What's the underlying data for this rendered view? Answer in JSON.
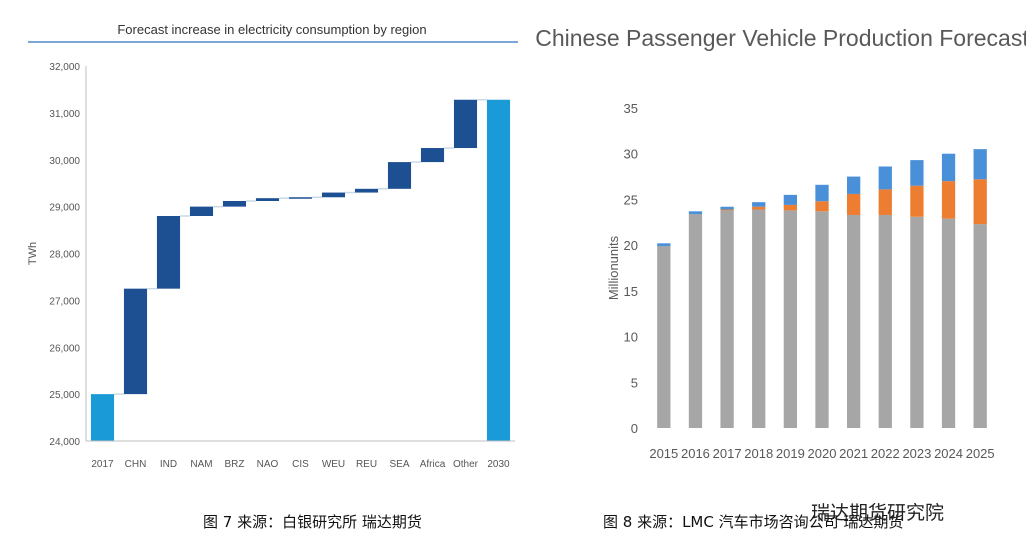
{
  "chart_data": [
    {
      "type": "bar",
      "subtype": "waterfall",
      "title": "Forecast increase in electricity consumption by region",
      "ylabel": "TWh",
      "xlabel": "",
      "ylim": [
        24000,
        32000
      ],
      "yticks": [
        "24,000",
        "25,000",
        "26,000",
        "27,000",
        "28,000",
        "29,000",
        "30,000",
        "31,000",
        "32,000"
      ],
      "categories": [
        "2017",
        "CHN",
        "IND",
        "NAM",
        "BRZ",
        "NAO",
        "CIS",
        "WEU",
        "REU",
        "SEA",
        "Africa",
        "Other",
        "2030"
      ],
      "bars": [
        {
          "label": "2017",
          "start": 24000,
          "end": 25000,
          "kind": "total"
        },
        {
          "label": "CHN",
          "start": 25000,
          "end": 27250,
          "kind": "delta"
        },
        {
          "label": "IND",
          "start": 27250,
          "end": 28800,
          "kind": "delta"
        },
        {
          "label": "NAM",
          "start": 28800,
          "end": 29000,
          "kind": "delta"
        },
        {
          "label": "BRZ",
          "start": 29000,
          "end": 29120,
          "kind": "delta"
        },
        {
          "label": "NAO",
          "start": 29120,
          "end": 29180,
          "kind": "delta"
        },
        {
          "label": "CIS",
          "start": 29180,
          "end": 29200,
          "kind": "delta"
        },
        {
          "label": "WEU",
          "start": 29200,
          "end": 29300,
          "kind": "delta"
        },
        {
          "label": "REU",
          "start": 29300,
          "end": 29380,
          "kind": "delta"
        },
        {
          "label": "SEA",
          "start": 29380,
          "end": 29950,
          "kind": "delta"
        },
        {
          "label": "Africa",
          "start": 29950,
          "end": 30250,
          "kind": "delta"
        },
        {
          "label": "Other",
          "start": 30250,
          "end": 31280,
          "kind": "delta"
        },
        {
          "label": "2030",
          "start": 24000,
          "end": 31280,
          "kind": "total"
        }
      ],
      "grid": false,
      "colors": {
        "total": "#1a9ad6",
        "delta": "#1d4f93",
        "connector": "#c9d9e8",
        "title_rule": "#7aa7d6"
      }
    },
    {
      "type": "bar",
      "subtype": "stacked",
      "title": "Chinese Passenger Vehicle Production Forecast",
      "ylabel": "Millionunits",
      "xlabel": "",
      "ylim": [
        0,
        35
      ],
      "yticks": [
        "0",
        "5",
        "10",
        "15",
        "20",
        "25",
        "30",
        "35"
      ],
      "categories": [
        "2015",
        "2016",
        "2017",
        "2018",
        "2019",
        "2020",
        "2021",
        "2022",
        "2023",
        "2024",
        "2025"
      ],
      "series": [
        {
          "values": [
            19.9,
            23.4,
            23.8,
            23.9,
            23.8,
            23.7,
            23.3,
            23.3,
            23.1,
            22.9,
            22.3
          ],
          "color": "#a6a6a6"
        },
        {
          "values": [
            0.0,
            0.0,
            0.1,
            0.3,
            0.6,
            1.1,
            2.3,
            2.8,
            3.4,
            4.1,
            4.9
          ],
          "color": "#ed7d31"
        },
        {
          "values": [
            0.3,
            0.3,
            0.3,
            0.5,
            1.1,
            1.8,
            1.9,
            2.5,
            2.8,
            3.0,
            3.3
          ],
          "color": "#4a90d9"
        }
      ],
      "grid": false
    }
  ],
  "captions": {
    "left": "图 7 来源：白银研究所 瑞达期货",
    "right": "图 8 来源：LMC 汽车市场咨询公司 瑞达期货"
  },
  "watermark": "瑞达期货研究院"
}
